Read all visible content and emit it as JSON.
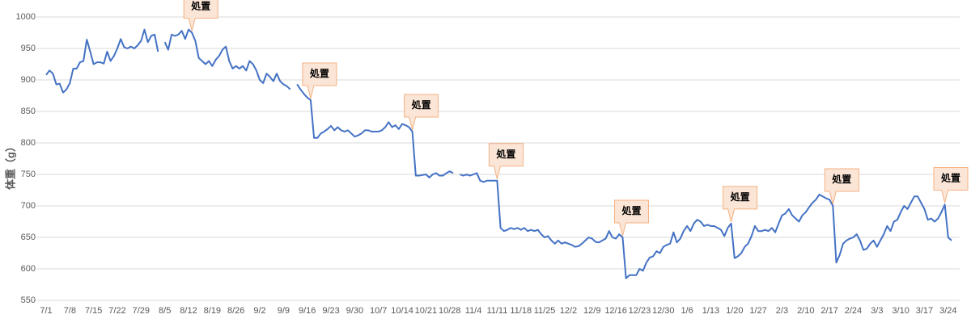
{
  "chart_data": {
    "type": "line",
    "y_label": "体重（g）",
    "categories": [
      "7/1",
      null,
      null,
      null,
      null,
      null,
      null,
      "7/8",
      null,
      null,
      null,
      null,
      null,
      null,
      "7/15",
      null,
      null,
      null,
      null,
      null,
      null,
      "7/22",
      null,
      null,
      null,
      null,
      null,
      null,
      "7/29",
      null,
      null,
      null,
      null,
      null,
      null,
      "8/5",
      null,
      null,
      null,
      null,
      null,
      null,
      "8/12",
      null,
      null,
      null,
      null,
      null,
      null,
      "8/19",
      null,
      null,
      null,
      null,
      null,
      null,
      "8/26",
      null,
      null,
      null,
      null,
      null,
      null,
      "9/2",
      null,
      null,
      null,
      null,
      null,
      null,
      "9/9",
      null,
      null,
      null,
      null,
      null,
      null,
      "9/16",
      null,
      null,
      null,
      null,
      null,
      null,
      "9/23",
      null,
      null,
      null,
      null,
      null,
      null,
      "9/30",
      null,
      null,
      null,
      null,
      null,
      null,
      "10/7",
      null,
      null,
      null,
      null,
      null,
      null,
      "10/14",
      null,
      null,
      null,
      null,
      null,
      null,
      "10/21",
      null,
      null,
      null,
      null,
      null,
      null,
      "10/28",
      null,
      null,
      null,
      null,
      null,
      null,
      "11/4",
      null,
      null,
      null,
      null,
      null,
      null,
      "11/11",
      null,
      null,
      null,
      null,
      null,
      null,
      "11/18",
      null,
      null,
      null,
      null,
      null,
      null,
      "11/25",
      null,
      null,
      null,
      null,
      null,
      null,
      "12/2",
      null,
      null,
      null,
      null,
      null,
      null,
      "12/9",
      null,
      null,
      null,
      null,
      null,
      null,
      "12/16",
      null,
      null,
      null,
      null,
      null,
      null,
      "12/23",
      null,
      null,
      null,
      null,
      null,
      null,
      "12/30",
      null,
      null,
      null,
      null,
      null,
      null,
      "1/6",
      null,
      null,
      null,
      null,
      null,
      null,
      "1/13",
      null,
      null,
      null,
      null,
      null,
      null,
      "1/20",
      null,
      null,
      null,
      null,
      null,
      null,
      "1/27",
      null,
      null,
      null,
      null,
      null,
      null,
      "2/3",
      null,
      null,
      null,
      null,
      null,
      null,
      "2/10",
      null,
      null,
      null,
      null,
      null,
      null,
      "2/17",
      null,
      null,
      null,
      null,
      null,
      null,
      "2/24",
      null,
      null,
      null,
      null,
      null,
      null,
      "3/3",
      null,
      null,
      null,
      null,
      null,
      null,
      "3/10",
      null,
      null,
      null,
      null,
      null,
      null,
      "3/17",
      null,
      null,
      null,
      null,
      null,
      null,
      "3/24",
      null
    ],
    "values": [
      908,
      915,
      910,
      893,
      894,
      880,
      885,
      895,
      918,
      918,
      928,
      930,
      964,
      945,
      925,
      928,
      928,
      926,
      945,
      930,
      938,
      950,
      965,
      952,
      950,
      953,
      950,
      955,
      962,
      980,
      960,
      970,
      972,
      945,
      null,
      960,
      948,
      972,
      970,
      972,
      978,
      965,
      980,
      975,
      962,
      935,
      930,
      925,
      930,
      922,
      932,
      938,
      948,
      953,
      930,
      918,
      922,
      918,
      922,
      915,
      930,
      925,
      915,
      900,
      895,
      910,
      905,
      898,
      910,
      898,
      893,
      890,
      885,
      null,
      893,
      885,
      878,
      872,
      868,
      808,
      808,
      815,
      818,
      822,
      827,
      820,
      825,
      820,
      818,
      820,
      815,
      810,
      812,
      815,
      820,
      820,
      818,
      818,
      818,
      820,
      825,
      833,
      825,
      828,
      822,
      830,
      828,
      825,
      818,
      748,
      748,
      749,
      750,
      745,
      750,
      752,
      748,
      748,
      752,
      755,
      752,
      null,
      750,
      748,
      750,
      748,
      750,
      752,
      740,
      738,
      740,
      740,
      740,
      740,
      665,
      660,
      662,
      665,
      663,
      665,
      662,
      665,
      660,
      662,
      660,
      662,
      655,
      650,
      652,
      645,
      640,
      645,
      640,
      642,
      640,
      638,
      635,
      636,
      640,
      645,
      650,
      648,
      643,
      642,
      645,
      648,
      660,
      650,
      648,
      655,
      650,
      585,
      590,
      590,
      590,
      600,
      597,
      610,
      618,
      620,
      628,
      625,
      635,
      638,
      640,
      658,
      642,
      648,
      660,
      668,
      660,
      672,
      678,
      675,
      668,
      670,
      668,
      668,
      665,
      662,
      652,
      665,
      672,
      617,
      620,
      625,
      635,
      640,
      652,
      668,
      660,
      660,
      662,
      660,
      665,
      658,
      672,
      685,
      688,
      695,
      685,
      680,
      675,
      685,
      690,
      698,
      705,
      710,
      718,
      715,
      712,
      710,
      700,
      610,
      622,
      640,
      645,
      648,
      650,
      655,
      645,
      630,
      632,
      640,
      645,
      635,
      645,
      655,
      668,
      660,
      675,
      678,
      690,
      700,
      695,
      705,
      715,
      715,
      705,
      695,
      678,
      680,
      675,
      680,
      690,
      702,
      650,
      645
    ],
    "color": "#4472c4",
    "ylim": [
      550,
      1000
    ],
    "yticks": [
      550,
      600,
      650,
      700,
      750,
      800,
      850,
      900,
      950,
      1000
    ],
    "grid": true,
    "annotations": [
      "処置",
      "処置",
      "処置",
      "処置",
      "処置",
      "処置",
      "処置",
      "処置"
    ]
  }
}
